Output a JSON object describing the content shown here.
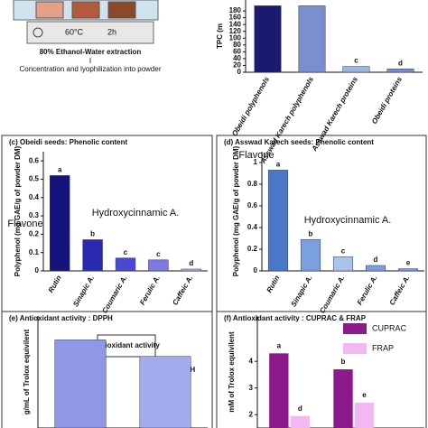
{
  "diagram": {
    "labels": [
      "60°C",
      "2h",
      "80% Ethanol-Water extraction",
      "Concentration and lyophilization into powder"
    ]
  },
  "chart_data": [
    {
      "type": "bar",
      "ylabel": "TPC (m",
      "categories": [
        "Obeidi polyphenols",
        "Asswad Karech polyphenols",
        "Asswad Karech proteins",
        "Obeidi proteins"
      ],
      "values": [
        195,
        195,
        17,
        10
      ],
      "letters": [
        null,
        null,
        "c",
        "d"
      ],
      "colors": [
        "#1a1a6e",
        "#7a8fd0",
        "#9ab6e0",
        "#7a8fd0"
      ],
      "ylim": [
        0,
        212
      ],
      "yticks": [
        0,
        20,
        40,
        60,
        80,
        100,
        120,
        140,
        160,
        180
      ]
    },
    {
      "type": "bar",
      "title": "(c) Obeidi seeds: Phenolic content",
      "ylabel": "Polyphenol (mg GAE/g of powder DM)",
      "categories": [
        "Rutin",
        "Sinapic A.",
        "Coumaric A.",
        "Ferulic A.",
        "Caffeic A."
      ],
      "values": [
        0.52,
        0.17,
        0.07,
        0.06,
        0.01
      ],
      "letters": [
        "a",
        "b",
        "c",
        "c",
        "d"
      ],
      "colors": [
        "#14147a",
        "#2a2ab0",
        "#4848d0",
        "#7a7ae0",
        "#b0b0f0"
      ],
      "annotations": [
        "Flavone",
        "Hydroxycinnamic A."
      ],
      "ylim": [
        0,
        0.65
      ],
      "yticks": [
        0,
        0.1,
        0.2,
        0.3,
        0.4,
        0.5,
        0.6
      ]
    },
    {
      "type": "bar",
      "title": "(d) Asswad Karech seeds: Phenolic content",
      "ylabel": "Polyphenol (mg GAE/g of powder DM)",
      "categories": [
        "Rutin",
        "Sinapic A.",
        "Coumaric A.",
        "Ferulic A.",
        "Caffeic A."
      ],
      "values": [
        0.93,
        0.29,
        0.13,
        0.05,
        0.02
      ],
      "letters": [
        "a",
        "b",
        "c",
        "d",
        "e"
      ],
      "colors": [
        "#4a78c8",
        "#7aa0e0",
        "#a8c4ec",
        "#7aa0e0",
        "#7aa0e0"
      ],
      "annotations": [
        "Flavone",
        "Hydroxycinnamic A."
      ],
      "ylim": [
        0,
        1.1
      ],
      "yticks": [
        0,
        0.2,
        0.4,
        0.6,
        0.8,
        1
      ]
    },
    {
      "type": "bar",
      "title": "(e) Antioxidant activity : DPPH",
      "ylabel": "g/mL of Trolox equivilent",
      "values": [
        660,
        570
      ],
      "colors": [
        "#8f97e6",
        "#a3aaee"
      ],
      "annotations": [
        "Antioxidant activity",
        "DPPH"
      ],
      "ylim": [
        180,
        790
      ]
    },
    {
      "type": "grouped_bar",
      "title": "(f) Antioxidant activity : CUPRAC & FRAP",
      "ylabel": "mM of Trolox equivilent",
      "series": [
        {
          "name": "CUPRAC",
          "color": "#8b1a8b",
          "values": [
            4.3,
            3.7
          ],
          "letters": [
            "a",
            "b"
          ]
        },
        {
          "name": "FRAP",
          "color": "#f2b8f2",
          "values": [
            1.95,
            2.45
          ],
          "letters": [
            "d",
            "e"
          ]
        }
      ],
      "ylim": [
        1.5,
        5.7
      ],
      "yticks": [
        2,
        3,
        4
      ]
    }
  ]
}
